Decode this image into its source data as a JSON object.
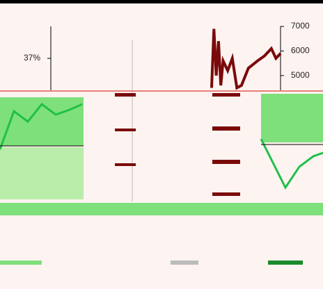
{
  "chart_data": {
    "type": "line",
    "ylim": [
      36,
      38
    ],
    "yticks": [
      {
        "value": 37,
        "label": "37%"
      }
    ],
    "y2lim": [
      4400,
      7000
    ],
    "y2ticks": [
      5000,
      6000,
      7000
    ],
    "xlim": [
      0,
      100
    ],
    "series": [
      {
        "color": "#7a0a0a",
        "axis": "y2",
        "x": [
          70,
          71,
          72,
          73,
          74,
          75,
          77,
          79,
          81,
          83,
          86,
          90,
          93,
          96,
          98,
          100
        ],
        "values": [
          4500,
          6900,
          5000,
          6400,
          4600,
          5600,
          5200,
          5700,
          4500,
          4600,
          5300,
          5600,
          5800,
          6100,
          5700,
          5900
        ]
      }
    ]
  }
}
